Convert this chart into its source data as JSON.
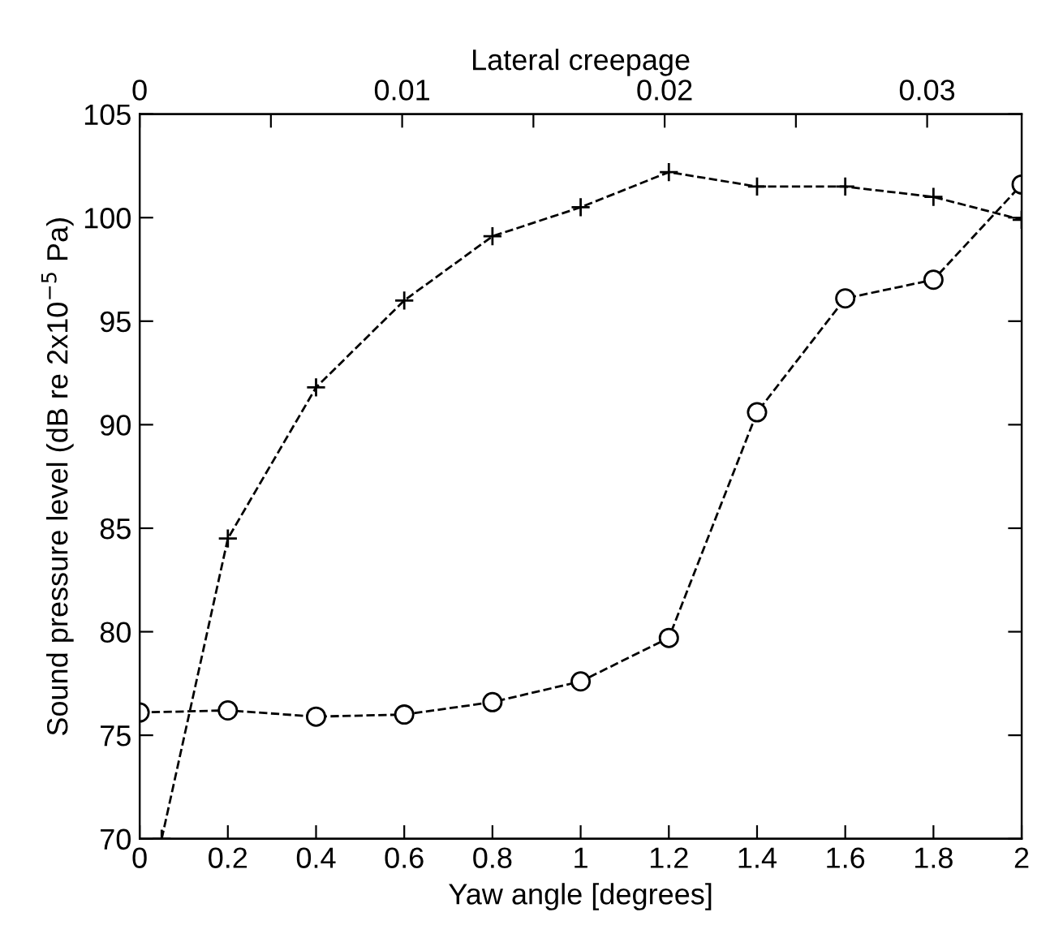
{
  "chart_data": {
    "type": "line",
    "xlabel": "Yaw angle [degrees]",
    "ylabel": "Sound pressure level (dB re 2x10$^{−5}$ Pa)",
    "x2label": "Lateral creepage",
    "xlim": [
      0,
      2
    ],
    "xticks": [
      0,
      0.2,
      0.4,
      0.6,
      0.8,
      1,
      1.2,
      1.4,
      1.6,
      1.8,
      2
    ],
    "ylim": [
      70,
      105
    ],
    "yticks": [
      70,
      75,
      80,
      85,
      90,
      95,
      100,
      105
    ],
    "x2lim": [
      0,
      0.0336
    ],
    "x2ticks": [
      0,
      {
        "value": 0.005,
        "label": null
      },
      0.01,
      {
        "value": 0.015,
        "label": null
      },
      0.02,
      {
        "value": 0.025,
        "label": null
      },
      0.03
    ],
    "line_style": "dashed",
    "series": [
      {
        "color": "#000000",
        "marker": "cross",
        "x": [
          0.05,
          0.2,
          0.4,
          0.6,
          0.8,
          1.0,
          1.2,
          1.4,
          1.6,
          1.8,
          2.0
        ],
        "values": [
          70,
          84.5,
          91.8,
          96,
          99.1,
          100.5,
          102.2,
          101.5,
          101.5,
          101,
          99.9
        ]
      },
      {
        "color": "#000000",
        "marker": "circle",
        "x": [
          0,
          0.2,
          0.4,
          0.6,
          0.8,
          1.0,
          1.2,
          1.4,
          1.6,
          1.8,
          2.0
        ],
        "values": [
          76.1,
          76.2,
          75.9,
          76,
          76.6,
          77.6,
          79.7,
          90.6,
          96.1,
          97,
          101.6
        ]
      }
    ]
  }
}
